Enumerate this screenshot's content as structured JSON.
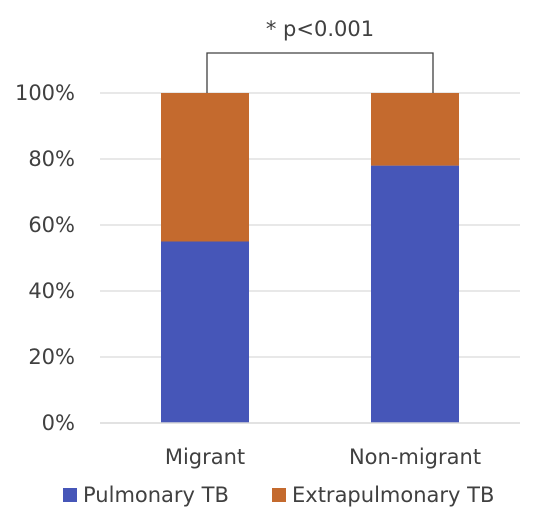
{
  "chart_data": {
    "type": "bar",
    "stacked": true,
    "categories": [
      "Migrant",
      "Non-migrant"
    ],
    "series": [
      {
        "name": "Pulmonary TB",
        "values": [
          55,
          78
        ],
        "color": "#4656B8"
      },
      {
        "name": "Extrapulmonary TB",
        "values": [
          45,
          22
        ],
        "color": "#C46A2E"
      }
    ],
    "ylim": [
      0,
      100
    ],
    "yticks": [
      "0%",
      "20%",
      "40%",
      "60%",
      "80%",
      "100%"
    ],
    "grid": true,
    "legend_position": "bottom",
    "annotation": "* p<0.001"
  }
}
